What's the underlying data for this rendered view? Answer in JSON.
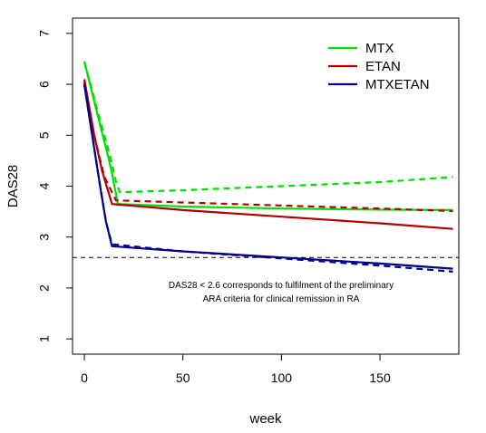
{
  "chart_data": {
    "type": "line",
    "xlabel": "week",
    "ylabel": "DAS28",
    "xlim": [
      -6,
      190
    ],
    "ylim": [
      0.7,
      7.3
    ],
    "x_ticks": [
      0,
      50,
      100,
      150
    ],
    "y_ticks": [
      1,
      2,
      3,
      4,
      5,
      6,
      7
    ],
    "box": true,
    "legend_position": "top-right",
    "legend": [
      {
        "label": "MTX",
        "color": "#00e000"
      },
      {
        "label": "ETAN",
        "color": "#b00000"
      },
      {
        "label": "MTXETAN",
        "color": "#00008b"
      }
    ],
    "threshold": {
      "y": 2.6,
      "style": "dashed"
    },
    "annotation": [
      "DAS28 < 2.6 corresponds to fulfilment of the preliminary",
      "ARA criteria for clinical remission in RA"
    ],
    "series": [
      {
        "name": "MTX",
        "style": "solid",
        "color": "#00e000",
        "points": [
          [
            0,
            6.45
          ],
          [
            8,
            5.2
          ],
          [
            12,
            4.6
          ],
          [
            14,
            4.25
          ],
          [
            17,
            3.65
          ],
          [
            50,
            3.6
          ],
          [
            100,
            3.56
          ],
          [
            150,
            3.54
          ],
          [
            187,
            3.53
          ]
        ]
      },
      {
        "name": "MTX",
        "style": "dashed",
        "color": "#00e000",
        "points": [
          [
            0,
            6.45
          ],
          [
            8,
            5.3
          ],
          [
            13,
            4.6
          ],
          [
            16,
            4.1
          ],
          [
            18,
            3.88
          ],
          [
            50,
            3.92
          ],
          [
            100,
            4.0
          ],
          [
            150,
            4.08
          ],
          [
            187,
            4.18
          ]
        ]
      },
      {
        "name": "ETAN",
        "style": "solid",
        "color": "#b00000",
        "points": [
          [
            0,
            6.1
          ],
          [
            5,
            5.0
          ],
          [
            9,
            4.3
          ],
          [
            14,
            3.65
          ],
          [
            50,
            3.53
          ],
          [
            100,
            3.4
          ],
          [
            150,
            3.27
          ],
          [
            187,
            3.16
          ]
        ]
      },
      {
        "name": "ETAN",
        "style": "dashed",
        "color": "#b00000",
        "points": [
          [
            0,
            6.05
          ],
          [
            5,
            5.0
          ],
          [
            10,
            4.2
          ],
          [
            16,
            3.72
          ],
          [
            50,
            3.68
          ],
          [
            100,
            3.62
          ],
          [
            150,
            3.56
          ],
          [
            187,
            3.51
          ]
        ]
      },
      {
        "name": "MTXETAN",
        "style": "solid",
        "color": "#00008b",
        "points": [
          [
            0,
            6.0
          ],
          [
            4,
            5.0
          ],
          [
            8,
            4.0
          ],
          [
            11,
            3.3
          ],
          [
            14,
            2.82
          ],
          [
            50,
            2.72
          ],
          [
            100,
            2.6
          ],
          [
            150,
            2.48
          ],
          [
            187,
            2.38
          ]
        ]
      },
      {
        "name": "MTXETAN",
        "style": "dashed",
        "color": "#00008b",
        "points": [
          [
            0,
            6.0
          ],
          [
            4,
            5.0
          ],
          [
            8,
            4.0
          ],
          [
            11,
            3.3
          ],
          [
            14,
            2.86
          ],
          [
            50,
            2.72
          ],
          [
            100,
            2.58
          ],
          [
            150,
            2.44
          ],
          [
            187,
            2.32
          ]
        ]
      }
    ]
  }
}
